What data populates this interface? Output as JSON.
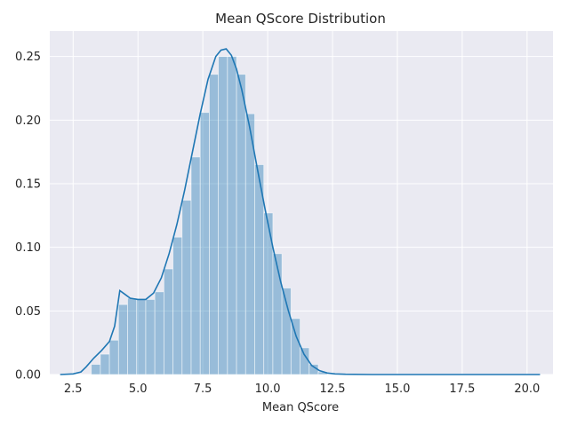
{
  "chart_data": {
    "type": "bar",
    "title": "Mean QScore Distribution",
    "xlabel": "Mean QScore",
    "ylabel": "",
    "xlim": [
      1.6,
      21.0
    ],
    "ylim": [
      0,
      0.27
    ],
    "grid": true,
    "x_ticks": [
      2.5,
      5.0,
      7.5,
      10.0,
      12.5,
      15.0,
      17.5,
      20.0
    ],
    "x_tick_labels": [
      "2.5",
      "5.0",
      "7.5",
      "10.0",
      "12.5",
      "15.0",
      "17.5",
      "20.0"
    ],
    "y_ticks": [
      0.0,
      0.05,
      0.1,
      0.15,
      0.2,
      0.25
    ],
    "y_tick_labels": [
      "0.00",
      "0.05",
      "0.10",
      "0.15",
      "0.20",
      "0.25"
    ],
    "bin_width": 0.35,
    "bins": [
      {
        "x0": 3.2,
        "value": 0.008
      },
      {
        "x0": 3.55,
        "value": 0.016
      },
      {
        "x0": 3.9,
        "value": 0.027
      },
      {
        "x0": 4.25,
        "value": 0.055
      },
      {
        "x0": 4.6,
        "value": 0.06
      },
      {
        "x0": 4.95,
        "value": 0.059
      },
      {
        "x0": 5.3,
        "value": 0.059
      },
      {
        "x0": 5.65,
        "value": 0.065
      },
      {
        "x0": 6.0,
        "value": 0.083
      },
      {
        "x0": 6.35,
        "value": 0.108
      },
      {
        "x0": 6.7,
        "value": 0.137
      },
      {
        "x0": 7.05,
        "value": 0.171
      },
      {
        "x0": 7.4,
        "value": 0.206
      },
      {
        "x0": 7.75,
        "value": 0.236
      },
      {
        "x0": 8.1,
        "value": 0.25
      },
      {
        "x0": 8.45,
        "value": 0.25
      },
      {
        "x0": 8.8,
        "value": 0.236
      },
      {
        "x0": 9.15,
        "value": 0.205
      },
      {
        "x0": 9.5,
        "value": 0.165
      },
      {
        "x0": 9.85,
        "value": 0.127
      },
      {
        "x0": 10.2,
        "value": 0.095
      },
      {
        "x0": 10.55,
        "value": 0.068
      },
      {
        "x0": 10.9,
        "value": 0.044
      },
      {
        "x0": 11.25,
        "value": 0.021
      },
      {
        "x0": 11.6,
        "value": 0.008
      },
      {
        "x0": 11.95,
        "value": 0.002
      }
    ],
    "kde": {
      "x": [
        2.0,
        2.5,
        2.8,
        3.0,
        3.3,
        3.6,
        3.9,
        4.1,
        4.3,
        4.5,
        4.7,
        5.0,
        5.3,
        5.6,
        5.9,
        6.2,
        6.5,
        6.8,
        7.1,
        7.4,
        7.7,
        8.0,
        8.2,
        8.4,
        8.6,
        8.8,
        9.0,
        9.3,
        9.6,
        9.9,
        10.2,
        10.5,
        10.8,
        11.1,
        11.4,
        11.7,
        12.0,
        12.3,
        12.6,
        13.0,
        14.0,
        16.0,
        18.0,
        20.5
      ],
      "y": [
        0.0,
        0.0005,
        0.002,
        0.006,
        0.013,
        0.019,
        0.026,
        0.038,
        0.066,
        0.063,
        0.06,
        0.059,
        0.059,
        0.064,
        0.076,
        0.095,
        0.118,
        0.145,
        0.175,
        0.205,
        0.232,
        0.25,
        0.255,
        0.256,
        0.251,
        0.24,
        0.224,
        0.195,
        0.162,
        0.13,
        0.1,
        0.073,
        0.05,
        0.03,
        0.016,
        0.007,
        0.003,
        0.0012,
        0.0005,
        0.0002,
        0.0,
        0.0,
        0.0,
        0.0
      ]
    },
    "colors": {
      "background": "#eaeaf2",
      "grid": "#ffffff",
      "bar_fill": "#1f77b4",
      "bar_opacity": 0.4,
      "line": "#1f77b4",
      "text": "#262626"
    }
  }
}
